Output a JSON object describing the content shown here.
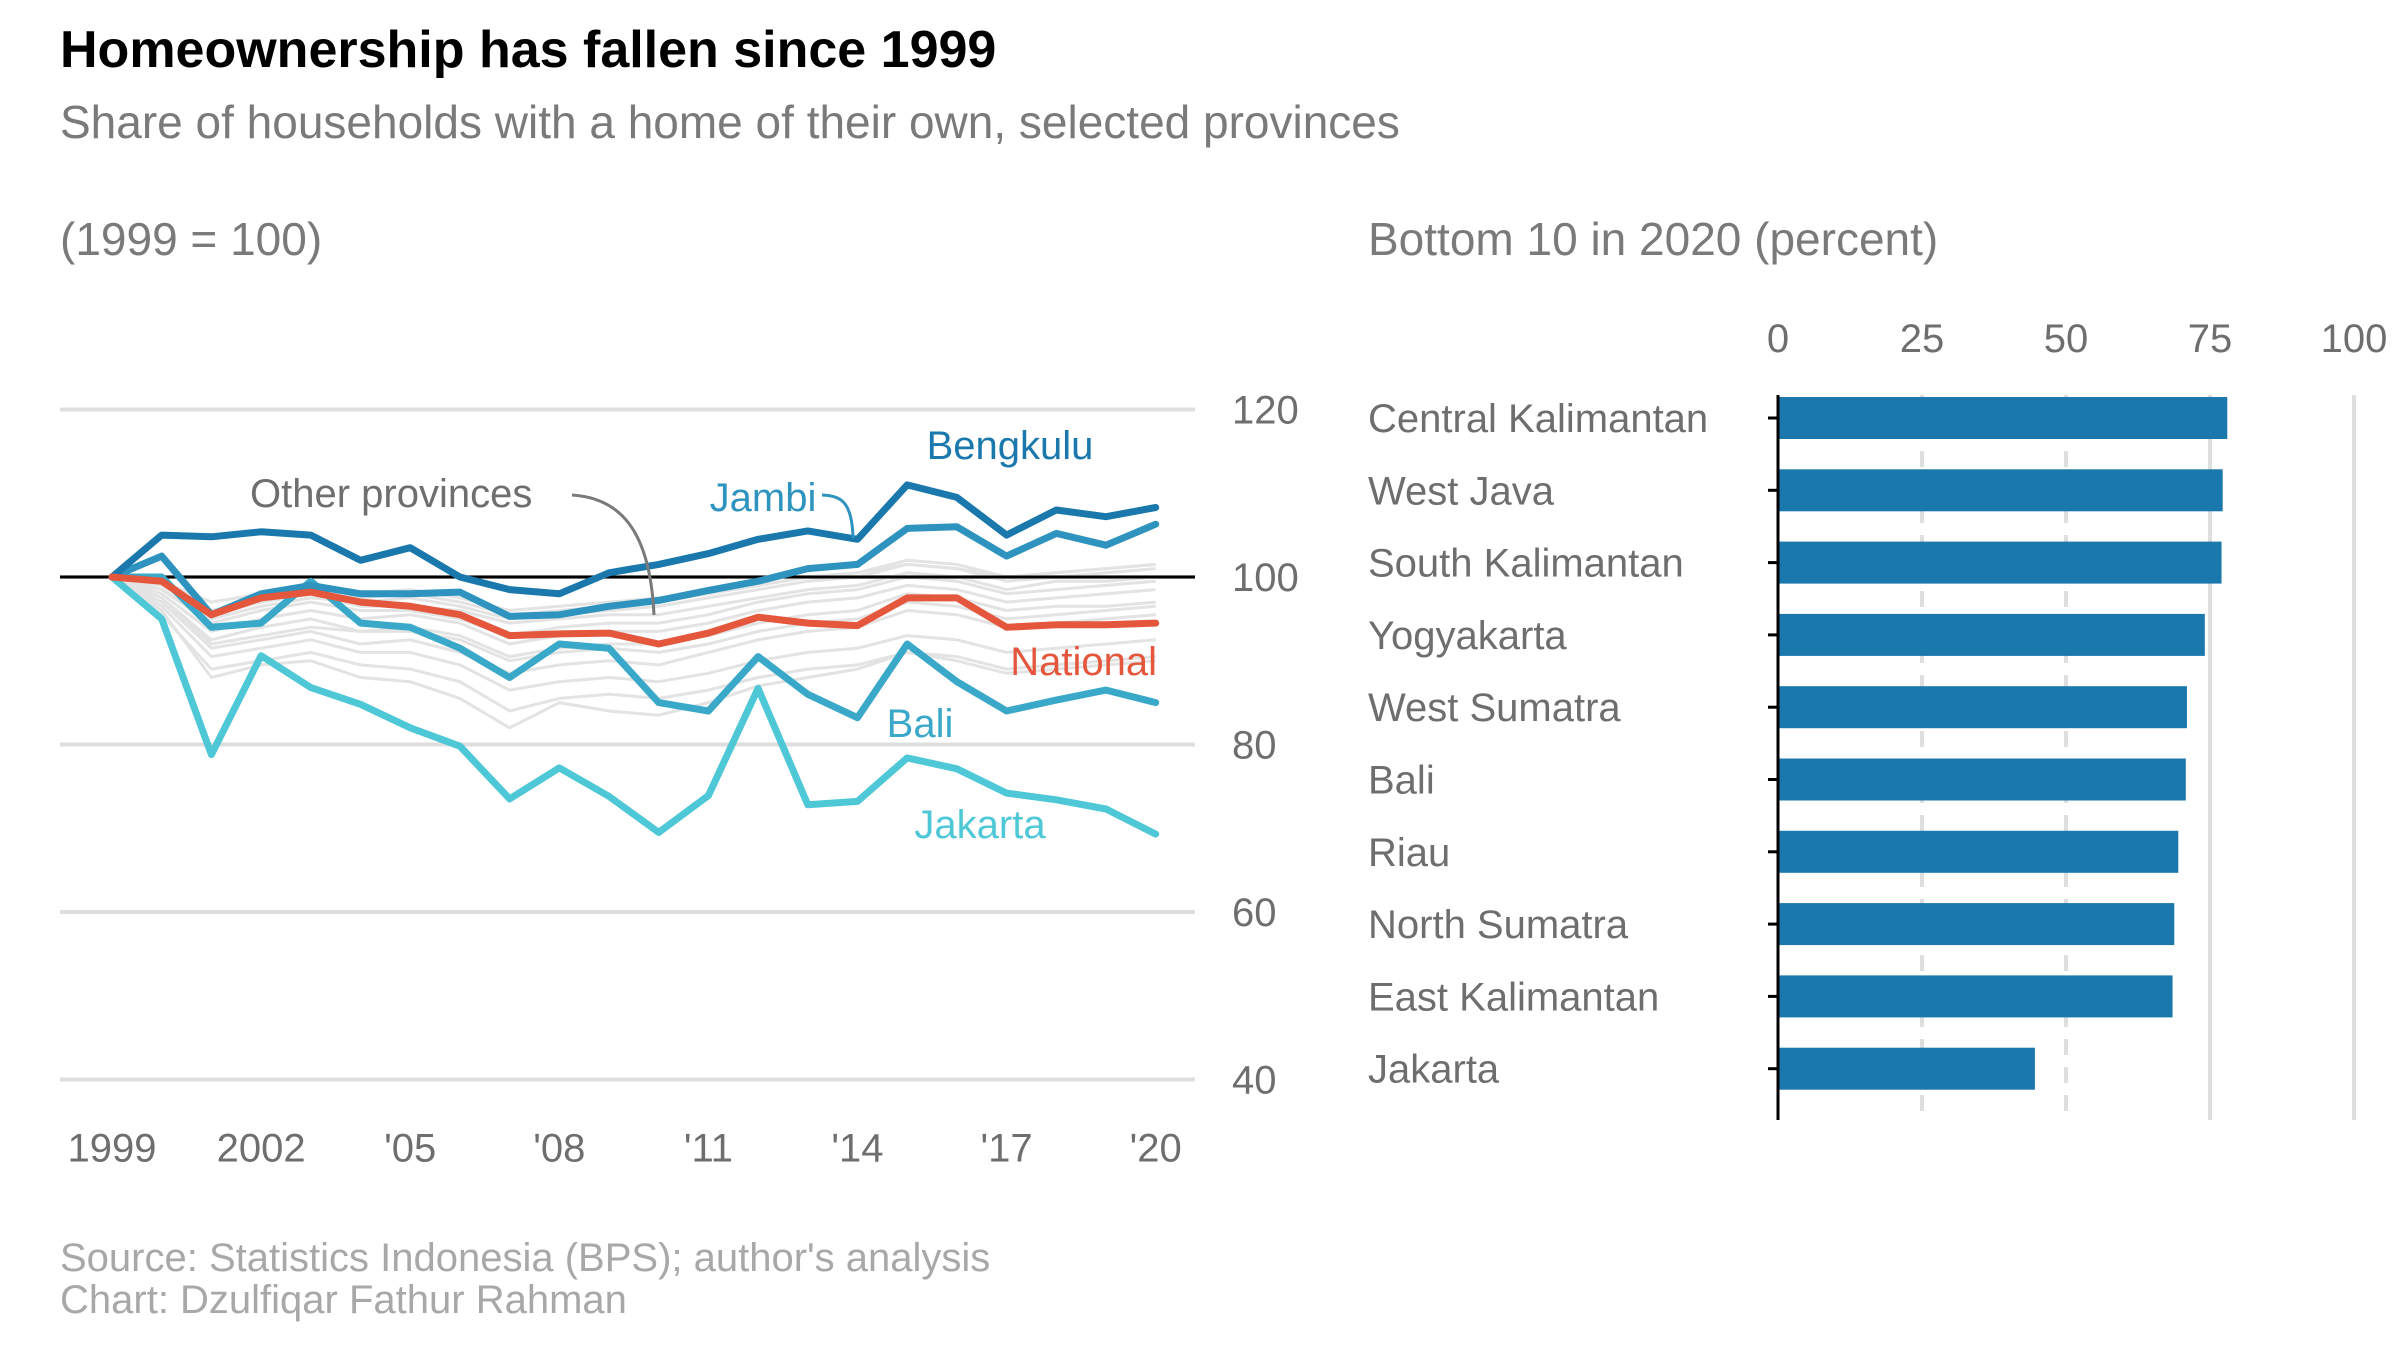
{
  "header": {
    "title": "Homeownership has fallen since 1999",
    "subtitle": "Share of households with a home of their own, selected provinces"
  },
  "footer": {
    "source": "Source: Statistics Indonesia (BPS); author's analysis",
    "credit": "Chart: Dzulfiqar Fathur Rahman"
  },
  "colors": {
    "bengkulu": "#1a78ad",
    "jambi": "#2e93be",
    "bali": "#3aa8c8",
    "jakarta": "#4ec8d6",
    "national": "#e4573d",
    "other": "#e3e3e3",
    "bar": "#1a78ad",
    "annotation": "#7a7a7a"
  },
  "chart_data": [
    {
      "type": "line",
      "caption": "(1999 = 100)",
      "x": [
        1999,
        2000,
        2001,
        2002,
        2003,
        2004,
        2005,
        2006,
        2007,
        2008,
        2009,
        2010,
        2011,
        2012,
        2013,
        2014,
        2015,
        2016,
        2017,
        2018,
        2019,
        2020
      ],
      "x_tick_values": [
        1999,
        2002,
        2005,
        2008,
        2011,
        2014,
        2017,
        2020
      ],
      "x_tick_labels": [
        "1999",
        "2002",
        "'05",
        "'08",
        "'11",
        "'14",
        "'17",
        "'20"
      ],
      "y_ticks": [
        40,
        60,
        80,
        100,
        120
      ],
      "ylim": [
        40,
        120
      ],
      "grid": true,
      "reference_line": 100,
      "annotation": "Other provinces",
      "series": [
        {
          "name": "Bengkulu",
          "key": "bengkulu",
          "values": [
            100,
            105,
            104.8,
            105.4,
            105,
            102,
            103.5,
            100,
            98.5,
            98,
            100.5,
            101.5,
            102.8,
            104.5,
            105.5,
            104.5,
            111,
            109.5,
            105,
            108,
            107.2,
            108.3
          ]
        },
        {
          "name": "Jambi",
          "key": "jambi",
          "values": [
            100,
            102.5,
            95.5,
            98,
            99,
            98,
            98,
            98.2,
            95.3,
            95.5,
            96.5,
            97.2,
            98.4,
            99.5,
            101,
            101.5,
            105.8,
            106,
            102.5,
            105.2,
            103.8,
            106.3
          ]
        },
        {
          "name": "National",
          "key": "national",
          "values": [
            100,
            99.5,
            95.5,
            97.5,
            98.2,
            97,
            96.5,
            95.5,
            93,
            93.2,
            93.3,
            92,
            93.3,
            95.2,
            94.5,
            94.2,
            97.5,
            97.5,
            94,
            94.3,
            94.3,
            94.5
          ]
        },
        {
          "name": "Bali",
          "key": "bali",
          "values": [
            100,
            100,
            94,
            94.5,
            99.5,
            94.5,
            94,
            91.5,
            88,
            92,
            91.5,
            85,
            84,
            90.5,
            86,
            83.2,
            92,
            87.5,
            84,
            85.3,
            86.5,
            85
          ]
        },
        {
          "name": "Jakarta",
          "key": "jakarta",
          "values": [
            100,
            95,
            78.8,
            90.6,
            86.8,
            84.8,
            82,
            79.8,
            73.5,
            77.2,
            73.8,
            69.5,
            73.9,
            86.7,
            72.8,
            73.2,
            78.4,
            77.1,
            74.2,
            73.4,
            72.3,
            69.3
          ]
        },
        {
          "name": "",
          "key": "other",
          "values": [
            100,
            97.5,
            92,
            93,
            94,
            93.5,
            94,
            93,
            90.5,
            91.5,
            92,
            92,
            93,
            94.5,
            95.5,
            96,
            98,
            97.5,
            96,
            96.5,
            96.5,
            97
          ]
        },
        {
          "name": "",
          "key": "other",
          "values": [
            100,
            99,
            96,
            97,
            98,
            96.5,
            96.5,
            96,
            94.5,
            95,
            95.5,
            95.5,
            96.5,
            97.5,
            98.5,
            99,
            100.5,
            100,
            98.5,
            99.5,
            99.5,
            100
          ]
        },
        {
          "name": "",
          "key": "other",
          "values": [
            100,
            96.5,
            90.5,
            91.5,
            92.5,
            91,
            91,
            89.5,
            86.5,
            87.5,
            88,
            87.5,
            88.5,
            90,
            91,
            91.5,
            93,
            92.5,
            91,
            91.5,
            92,
            92.5
          ]
        },
        {
          "name": "",
          "key": "other",
          "values": [
            100,
            98,
            93.5,
            95,
            96,
            95,
            95.5,
            94.5,
            92,
            93,
            93.5,
            93.5,
            94.5,
            96,
            97,
            97.5,
            99,
            98.5,
            97,
            97.5,
            98,
            98.5
          ]
        },
        {
          "name": "",
          "key": "other",
          "values": [
            100,
            95.5,
            89,
            90,
            91,
            89.5,
            89,
            87.5,
            84,
            85.5,
            86,
            85.5,
            86.5,
            88,
            89,
            89.5,
            91,
            90.5,
            89,
            89.5,
            90,
            90.5
          ]
        },
        {
          "name": "",
          "key": "other",
          "values": [
            100,
            99.5,
            97,
            98,
            99,
            98,
            98.5,
            97.5,
            96,
            96.5,
            97,
            97.5,
            98,
            99,
            100,
            100.5,
            101.5,
            101,
            100,
            100.5,
            101,
            101.5
          ]
        },
        {
          "name": "",
          "key": "other",
          "values": [
            100,
            97,
            91.5,
            92.5,
            93.5,
            92,
            92.5,
            91,
            88.5,
            89.5,
            90,
            89.5,
            91,
            92.5,
            93.5,
            94,
            96,
            95.5,
            94,
            94.5,
            95,
            95.5
          ]
        },
        {
          "name": "",
          "key": "other",
          "values": [
            100,
            98.5,
            94.5,
            96,
            97,
            96,
            96,
            95,
            93,
            94,
            94.5,
            94.5,
            95.5,
            97,
            98,
            98.5,
            100,
            99.5,
            98,
            98.5,
            99,
            99.5
          ]
        },
        {
          "name": "",
          "key": "other",
          "values": [
            100,
            96,
            88,
            89.5,
            90,
            88,
            87.5,
            85.5,
            82,
            85,
            84,
            83.5,
            85,
            87,
            88,
            89,
            91,
            90,
            88.5,
            89,
            89.5,
            90
          ]
        },
        {
          "name": "",
          "key": "other",
          "values": [
            100,
            98.5,
            95,
            96.5,
            97.5,
            97,
            97.5,
            96.5,
            95,
            95.5,
            96,
            96.5,
            97.5,
            98.5,
            99.5,
            100,
            101.5,
            101,
            99.5,
            100,
            100.5,
            101
          ]
        },
        {
          "name": "",
          "key": "other",
          "values": [
            100,
            97.5,
            92.5,
            94,
            95,
            93.5,
            93.5,
            92.5,
            90,
            91,
            91.5,
            91,
            92,
            93.5,
            94.5,
            95,
            97,
            96.5,
            95,
            95.5,
            96,
            96.5
          ]
        },
        {
          "name": "",
          "key": "other",
          "values": [
            100,
            99,
            95.5,
            97,
            98,
            97.5,
            98,
            97,
            95.5,
            96,
            96.5,
            97,
            98,
            99,
            100,
            100.5,
            102,
            101.5,
            100,
            100.5,
            101,
            101.5
          ]
        }
      ]
    },
    {
      "type": "bar",
      "caption": "Bottom 10 in 2020 (percent)",
      "orientation": "horizontal",
      "categories": [
        "Central Kalimantan",
        "West Java",
        "South Kalimantan",
        "Yogyakarta",
        "West Sumatra",
        "Bali",
        "Riau",
        "North Sumatra",
        "East Kalimantan",
        "Jakarta"
      ],
      "values": [
        78,
        77.2,
        77,
        74.1,
        71,
        70.8,
        69.5,
        68.8,
        68.5,
        44.6
      ],
      "x_ticks": [
        0,
        25,
        50,
        75,
        100
      ],
      "xlim": [
        0,
        100
      ],
      "axis_position": "top",
      "grid": true
    }
  ]
}
